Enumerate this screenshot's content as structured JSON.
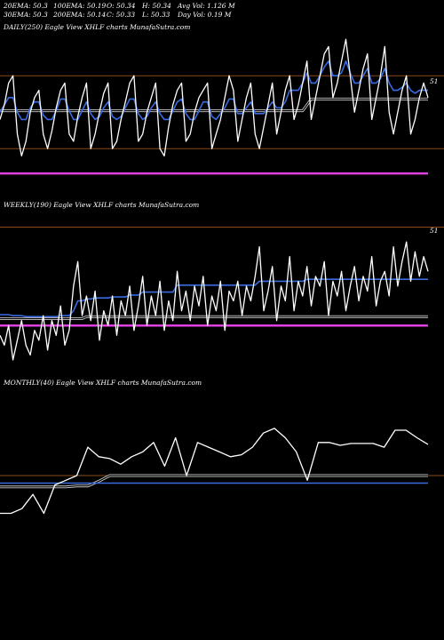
{
  "header": {
    "row1": [
      "20EMA: 50.3",
      "100EMA: 50.19",
      "O: 50.34",
      "H: 50.34",
      "Avg Vol: 1.126  M"
    ],
    "row2": [
      "30EMA: 50.3",
      "200EMA: 50.14",
      "C: 50.33",
      "L: 50.33",
      "Day Vol: 0.19  M"
    ]
  },
  "colors": {
    "price": "#ffffff",
    "ema_short": "#3a6be0",
    "ema_long": "#c8c8c8",
    "support": "#e040e0",
    "level": "#8a4a1a",
    "background": "#000000"
  },
  "chart_data": [
    {
      "type": "line",
      "title": "DAILY(250) Eagle   View  XHLF charts MunafaSutra.com",
      "price_label": "51",
      "x": [
        0,
        1,
        2,
        3,
        4,
        5,
        6,
        7,
        8,
        9,
        10,
        11,
        12,
        13,
        14,
        15,
        16,
        17,
        18,
        19,
        20,
        21,
        22,
        23,
        24,
        25,
        26,
        27,
        28,
        29,
        30,
        31,
        32,
        33,
        34,
        35,
        36,
        37,
        38,
        39,
        40,
        41,
        42,
        43,
        44,
        45,
        46,
        47,
        48,
        49,
        50,
        51,
        52,
        53,
        54,
        55,
        56,
        57,
        58,
        59,
        60,
        61,
        62,
        63,
        64,
        65,
        66,
        67,
        68,
        69,
        70,
        71,
        72,
        73,
        74,
        75,
        76,
        77,
        78,
        79,
        80,
        81,
        82,
        83,
        84,
        85,
        86,
        87,
        88,
        89,
        90,
        91,
        92,
        93,
        94,
        95,
        96,
        97,
        98,
        99
      ],
      "series": [
        {
          "values": [
            50.3,
            50.4,
            50.55,
            50.6,
            50.2,
            50.05,
            50.15,
            50.35,
            50.45,
            50.5,
            50.2,
            50.1,
            50.22,
            50.38,
            50.5,
            50.55,
            50.2,
            50.15,
            50.32,
            50.45,
            50.55,
            50.1,
            50.2,
            50.35,
            50.48,
            50.55,
            50.1,
            50.15,
            50.3,
            50.42,
            50.55,
            50.6,
            50.15,
            50.2,
            50.35,
            50.45,
            50.55,
            50.1,
            50.05,
            50.25,
            50.4,
            50.5,
            50.55,
            50.15,
            50.2,
            50.35,
            50.45,
            50.5,
            50.55,
            50.1,
            50.2,
            50.3,
            50.45,
            50.6,
            50.5,
            50.15,
            50.3,
            50.45,
            50.55,
            50.2,
            50.1,
            50.25,
            50.4,
            50.55,
            50.2,
            50.35,
            50.5,
            50.6,
            50.3,
            50.4,
            50.55,
            50.7,
            50.3,
            50.45,
            50.6,
            50.75,
            50.8,
            50.45,
            50.55,
            50.7,
            50.85,
            50.6,
            50.35,
            50.5,
            50.65,
            50.75,
            50.3,
            50.45,
            50.6,
            50.8,
            50.35,
            50.2,
            50.35,
            50.5,
            50.6,
            50.2,
            50.3,
            50.45,
            50.55,
            50.45
          ]
        },
        {
          "values": [
            50.35,
            50.4,
            50.45,
            50.45,
            50.35,
            50.3,
            50.3,
            50.38,
            50.42,
            50.42,
            50.33,
            50.3,
            50.3,
            50.36,
            50.44,
            50.44,
            50.36,
            50.3,
            50.3,
            50.36,
            50.42,
            50.34,
            50.3,
            50.32,
            50.38,
            50.42,
            50.32,
            50.3,
            50.32,
            50.38,
            50.44,
            50.44,
            50.34,
            50.3,
            50.32,
            50.38,
            50.42,
            50.34,
            50.3,
            50.3,
            50.36,
            50.42,
            50.44,
            50.34,
            50.3,
            50.3,
            50.36,
            50.42,
            50.42,
            50.32,
            50.3,
            50.34,
            50.38,
            50.44,
            50.44,
            50.34,
            50.34,
            50.38,
            50.42,
            50.34,
            50.34,
            50.34,
            50.38,
            50.42,
            50.38,
            50.38,
            50.42,
            50.5,
            50.5,
            50.5,
            50.55,
            50.62,
            50.55,
            50.55,
            50.6,
            50.66,
            50.7,
            50.6,
            50.6,
            50.62,
            50.7,
            50.62,
            50.55,
            50.55,
            50.6,
            50.65,
            50.55,
            50.55,
            50.58,
            50.65,
            50.55,
            50.5,
            50.5,
            50.52,
            50.55,
            50.5,
            50.48,
            50.5,
            50.5,
            50.5
          ]
        },
        {
          "values": [
            50.36,
            50.36,
            50.36,
            50.36,
            50.36,
            50.36,
            50.36,
            50.36,
            50.36,
            50.36,
            50.36,
            50.36,
            50.36,
            50.36,
            50.36,
            50.36,
            50.36,
            50.36,
            50.36,
            50.36,
            50.36,
            50.36,
            50.36,
            50.36,
            50.36,
            50.36,
            50.36,
            50.36,
            50.36,
            50.36,
            50.36,
            50.36,
            50.36,
            50.36,
            50.36,
            50.36,
            50.36,
            50.36,
            50.36,
            50.36,
            50.36,
            50.36,
            50.36,
            50.36,
            50.36,
            50.36,
            50.36,
            50.36,
            50.36,
            50.36,
            50.36,
            50.36,
            50.36,
            50.36,
            50.36,
            50.36,
            50.36,
            50.36,
            50.36,
            50.36,
            50.36,
            50.36,
            50.36,
            50.36,
            50.36,
            50.36,
            50.36,
            50.36,
            50.36,
            50.36,
            50.36,
            50.4,
            50.44,
            50.44,
            50.44,
            50.44,
            50.44,
            50.44,
            50.44,
            50.44,
            50.44,
            50.44,
            50.44,
            50.44,
            50.44,
            50.44,
            50.44,
            50.44,
            50.44,
            50.44,
            50.44,
            50.44,
            50.44,
            50.44,
            50.44,
            50.44,
            50.44,
            50.44,
            50.44,
            50.44
          ]
        }
      ],
      "ylim": [
        49.9,
        50.9
      ],
      "levels": [
        50.6,
        50.1
      ],
      "support": 49.93
    },
    {
      "type": "line",
      "title": "WEEKLY(190) Eagle   View  XHLF charts MunafaSutra.com",
      "price_label": "51",
      "x": [
        0,
        1,
        2,
        3,
        4,
        5,
        6,
        7,
        8,
        9,
        10,
        11,
        12,
        13,
        14,
        15,
        16,
        17,
        18,
        19,
        20,
        21,
        22,
        23,
        24,
        25,
        26,
        27,
        28,
        29,
        30,
        31,
        32,
        33,
        34,
        35,
        36,
        37,
        38,
        39,
        40,
        41,
        42,
        43,
        44,
        45,
        46,
        47,
        48,
        49,
        50,
        51,
        52,
        53,
        54,
        55,
        56,
        57,
        58,
        59,
        60,
        61,
        62,
        63,
        64,
        65,
        66,
        67,
        68,
        69,
        70,
        71,
        72,
        73,
        74,
        75,
        76,
        77,
        78,
        79,
        80,
        81,
        82,
        83,
        84,
        85,
        86,
        87,
        88,
        89,
        90,
        91,
        92,
        93,
        94,
        95,
        96,
        97,
        98,
        99
      ],
      "series": [
        {
          "values": [
            49.95,
            49.85,
            50.05,
            49.7,
            49.9,
            50.1,
            49.85,
            49.75,
            50.0,
            49.9,
            50.15,
            49.8,
            50.1,
            49.95,
            50.25,
            49.85,
            50.0,
            50.45,
            50.7,
            50.15,
            50.35,
            50.1,
            50.4,
            49.9,
            50.2,
            50.05,
            50.35,
            49.95,
            50.3,
            50.15,
            50.45,
            50.0,
            50.25,
            50.55,
            50.05,
            50.35,
            50.15,
            50.5,
            50.0,
            50.3,
            50.1,
            50.6,
            50.2,
            50.4,
            50.1,
            50.45,
            50.25,
            50.55,
            50.05,
            50.35,
            50.2,
            50.5,
            50.0,
            50.4,
            50.3,
            50.5,
            50.15,
            50.45,
            50.3,
            50.55,
            50.85,
            50.2,
            50.4,
            50.65,
            50.1,
            50.45,
            50.3,
            50.75,
            50.2,
            50.5,
            50.35,
            50.65,
            50.25,
            50.55,
            50.45,
            50.7,
            50.15,
            50.5,
            50.35,
            50.6,
            50.2,
            50.45,
            50.65,
            50.3,
            50.55,
            50.4,
            50.75,
            50.25,
            50.5,
            50.6,
            50.35,
            50.85,
            50.45,
            50.7,
            50.9,
            50.5,
            50.8,
            50.55,
            50.75,
            50.6
          ]
        },
        {
          "values": [
            50.16,
            50.16,
            50.16,
            50.15,
            50.15,
            50.15,
            50.14,
            50.14,
            50.14,
            50.14,
            50.14,
            50.14,
            50.14,
            50.14,
            50.15,
            50.15,
            50.15,
            50.2,
            50.3,
            50.3,
            50.32,
            50.32,
            50.33,
            50.33,
            50.33,
            50.33,
            50.34,
            50.34,
            50.34,
            50.34,
            50.36,
            50.36,
            50.36,
            50.39,
            50.39,
            50.39,
            50.39,
            50.39,
            50.39,
            50.39,
            50.39,
            50.46,
            50.46,
            50.46,
            50.46,
            50.46,
            50.46,
            50.46,
            50.46,
            50.46,
            50.46,
            50.46,
            50.46,
            50.46,
            50.46,
            50.46,
            50.46,
            50.46,
            50.46,
            50.46,
            50.5,
            50.5,
            50.5,
            50.5,
            50.5,
            50.5,
            50.5,
            50.5,
            50.5,
            50.5,
            50.5,
            50.52,
            50.52,
            50.52,
            50.52,
            50.52,
            50.52,
            50.52,
            50.52,
            50.52,
            50.52,
            50.52,
            50.52,
            50.52,
            50.52,
            50.52,
            50.52,
            50.52,
            50.52,
            50.52,
            50.52,
            50.52,
            50.52,
            50.52,
            50.52,
            50.52,
            50.52,
            50.52,
            50.52,
            50.52
          ]
        },
        {
          "values": [
            50.12,
            50.12,
            50.12,
            50.12,
            50.12,
            50.12,
            50.12,
            50.12,
            50.12,
            50.12,
            50.12,
            50.12,
            50.12,
            50.12,
            50.12,
            50.12,
            50.12,
            50.12,
            50.12,
            50.12,
            50.14,
            50.14,
            50.14,
            50.14,
            50.14,
            50.14,
            50.14,
            50.14,
            50.14,
            50.14,
            50.14,
            50.14,
            50.14,
            50.14,
            50.14,
            50.14,
            50.14,
            50.14,
            50.14,
            50.14,
            50.14,
            50.14,
            50.14,
            50.14,
            50.14,
            50.14,
            50.14,
            50.14,
            50.14,
            50.14,
            50.14,
            50.14,
            50.14,
            50.14,
            50.14,
            50.14,
            50.14,
            50.14,
            50.14,
            50.14,
            50.14,
            50.14,
            50.14,
            50.14,
            50.14,
            50.14,
            50.14,
            50.14,
            50.14,
            50.14,
            50.14,
            50.14,
            50.14,
            50.14,
            50.14,
            50.14,
            50.14,
            50.14,
            50.14,
            50.14,
            50.14,
            50.14,
            50.14,
            50.14,
            50.14,
            50.14,
            50.14,
            50.14,
            50.14,
            50.14,
            50.14,
            50.14,
            50.14,
            50.14,
            50.14,
            50.14,
            50.14,
            50.14,
            50.14,
            50.14
          ]
        }
      ],
      "ylim": [
        49.6,
        51.1
      ],
      "levels": [
        51.05
      ],
      "support": 50.05
    },
    {
      "type": "line",
      "title": "MONTHLY(40) Eagle   View  XHLF charts MunafaSutra.com",
      "x": [
        0,
        1,
        2,
        3,
        4,
        5,
        6,
        7,
        8,
        9,
        10,
        11,
        12,
        13,
        14,
        15,
        16,
        17,
        18,
        19,
        20,
        21,
        22,
        23,
        24,
        25,
        26,
        27,
        28,
        29,
        30,
        31,
        32,
        33,
        34,
        35,
        36,
        37,
        38,
        39
      ],
      "series": [
        {
          "values": [
            49.7,
            49.7,
            49.75,
            49.9,
            49.7,
            50.0,
            50.05,
            50.1,
            50.4,
            50.3,
            50.28,
            50.22,
            50.3,
            50.35,
            50.45,
            50.2,
            50.5,
            50.1,
            50.45,
            50.4,
            50.35,
            50.3,
            50.32,
            50.4,
            50.55,
            50.6,
            50.5,
            50.35,
            50.05,
            50.45,
            50.45,
            50.42,
            50.44,
            50.44,
            50.44,
            50.4,
            50.58,
            50.58,
            50.5,
            50.43
          ]
        },
        {
          "values": [
            50.02,
            50.02,
            50.02,
            50.02,
            50.02,
            50.02,
            50.02,
            50.02,
            50.02,
            50.02,
            50.02,
            50.02,
            50.02,
            50.02,
            50.02,
            50.02,
            50.02,
            50.02,
            50.02,
            50.02,
            50.02,
            50.02,
            50.02,
            50.02,
            50.02,
            50.02,
            50.02,
            50.02,
            50.02,
            50.02,
            50.02,
            50.02,
            50.02,
            50.02,
            50.02,
            50.02,
            50.02,
            50.02,
            50.02,
            50.02
          ]
        },
        {
          "values": [
            49.98,
            49.98,
            49.98,
            49.98,
            49.98,
            49.98,
            49.98,
            49.99,
            49.99,
            50.04,
            50.1,
            50.1,
            50.1,
            50.1,
            50.1,
            50.1,
            50.1,
            50.1,
            50.1,
            50.1,
            50.1,
            50.1,
            50.1,
            50.1,
            50.1,
            50.1,
            50.1,
            50.1,
            50.1,
            50.1,
            50.1,
            50.1,
            50.1,
            50.1,
            50.1,
            50.1,
            50.1,
            50.1,
            50.1,
            50.1
          ]
        }
      ],
      "ylim": [
        49.3,
        50.9
      ],
      "levels": [
        50.1
      ]
    }
  ]
}
